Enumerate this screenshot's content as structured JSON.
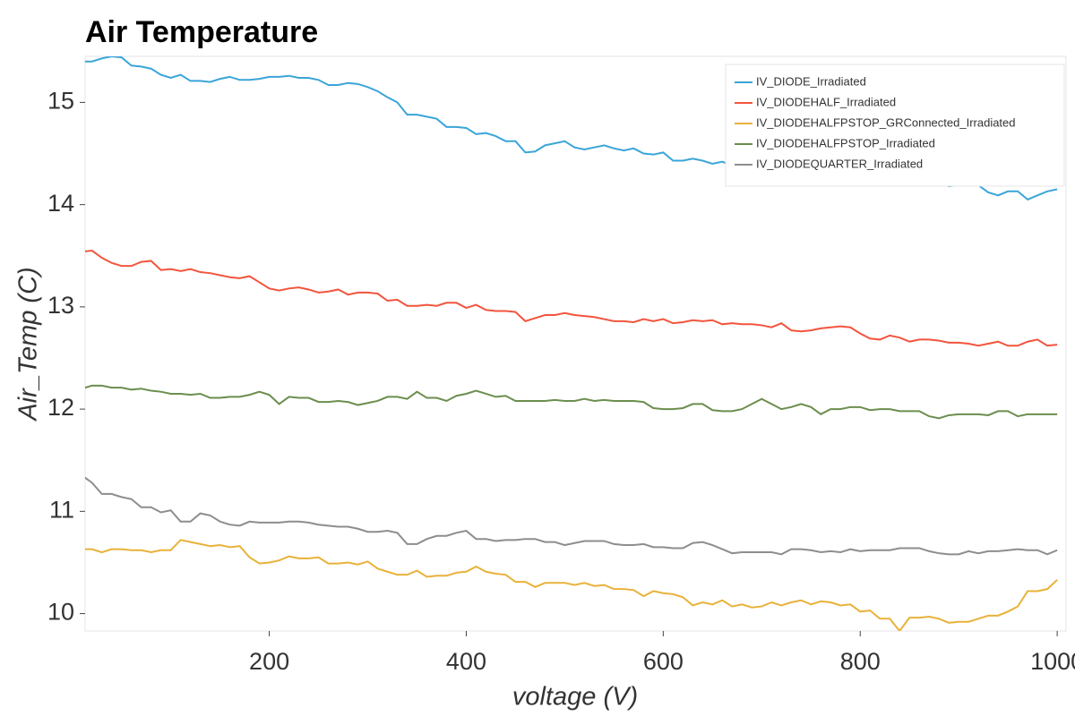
{
  "chart_data": {
    "type": "line",
    "title": "Air Temperature",
    "x_label": "voltage (V)",
    "y_label": "Air_Temp (C)",
    "x": [
      10,
      20,
      30,
      40,
      50,
      60,
      70,
      80,
      90,
      100,
      110,
      120,
      130,
      140,
      150,
      160,
      170,
      180,
      190,
      200,
      210,
      220,
      230,
      240,
      250,
      260,
      270,
      280,
      290,
      300,
      310,
      320,
      330,
      340,
      350,
      360,
      370,
      380,
      390,
      400,
      410,
      420,
      430,
      440,
      450,
      460,
      470,
      480,
      490,
      500,
      510,
      520,
      530,
      540,
      550,
      560,
      570,
      580,
      590,
      600,
      610,
      620,
      630,
      640,
      650,
      660,
      670,
      680,
      690,
      700,
      710,
      720,
      730,
      740,
      750,
      760,
      770,
      780,
      790,
      800,
      810,
      820,
      830,
      840,
      850,
      860,
      870,
      880,
      890,
      900,
      910,
      920,
      930,
      940,
      950,
      960,
      970,
      980,
      990,
      1000
    ],
    "series": [
      {
        "name": "IV_DIODE_Irradiated",
        "color": "#3aa5d9",
        "values": [
          15.4,
          15.4,
          15.43,
          15.45,
          15.44,
          15.36,
          15.35,
          15.33,
          15.27,
          15.24,
          15.27,
          15.21,
          15.21,
          15.2,
          15.23,
          15.25,
          15.22,
          15.22,
          15.23,
          15.25,
          15.25,
          15.26,
          15.24,
          15.24,
          15.22,
          15.17,
          15.17,
          15.19,
          15.18,
          15.15,
          15.11,
          15.05,
          15.0,
          14.88,
          14.88,
          14.86,
          14.84,
          14.76,
          14.76,
          14.75,
          14.69,
          14.7,
          14.67,
          14.62,
          14.62,
          14.51,
          14.52,
          14.58,
          14.6,
          14.62,
          14.56,
          14.54,
          14.56,
          14.58,
          14.55,
          14.53,
          14.55,
          14.5,
          14.49,
          14.51,
          14.43,
          14.43,
          14.45,
          14.43,
          14.4,
          14.42,
          14.38,
          14.37,
          14.36,
          14.35,
          14.34,
          14.33,
          14.33,
          14.32,
          14.31,
          14.3,
          14.3,
          14.29,
          14.28,
          14.28,
          14.27,
          14.27,
          14.26,
          14.26,
          14.25,
          14.25,
          14.25,
          14.22,
          14.18,
          14.19,
          14.19,
          14.19,
          14.12,
          14.09,
          14.13,
          14.13,
          14.05,
          14.09,
          14.13,
          14.15
        ]
      },
      {
        "name": "IV_DIODEHALF_Irradiated",
        "color": "#f2553d",
        "values": [
          13.54,
          13.55,
          13.48,
          13.43,
          13.4,
          13.4,
          13.44,
          13.45,
          13.36,
          13.37,
          13.35,
          13.37,
          13.34,
          13.33,
          13.31,
          13.29,
          13.28,
          13.3,
          13.24,
          13.18,
          13.16,
          13.18,
          13.19,
          13.17,
          13.14,
          13.15,
          13.17,
          13.12,
          13.14,
          13.14,
          13.13,
          13.06,
          13.07,
          13.01,
          13.01,
          13.02,
          13.01,
          13.04,
          13.04,
          12.99,
          13.02,
          12.97,
          12.96,
          12.96,
          12.95,
          12.86,
          12.89,
          12.92,
          12.92,
          12.94,
          12.92,
          12.91,
          12.9,
          12.88,
          12.86,
          12.86,
          12.85,
          12.88,
          12.86,
          12.88,
          12.84,
          12.85,
          12.87,
          12.86,
          12.87,
          12.83,
          12.84,
          12.83,
          12.83,
          12.82,
          12.8,
          12.84,
          12.77,
          12.76,
          12.77,
          12.79,
          12.8,
          12.81,
          12.8,
          12.74,
          12.69,
          12.68,
          12.72,
          12.7,
          12.66,
          12.68,
          12.68,
          12.67,
          12.65,
          12.65,
          12.64,
          12.62,
          12.64,
          12.66,
          12.62,
          12.62,
          12.66,
          12.68,
          12.62,
          12.63
        ]
      },
      {
        "name": "IV_DIODEHALFPSTOP_GRConnected_Irradiated",
        "color": "#e8b23a",
        "values": [
          10.63,
          10.63,
          10.6,
          10.63,
          10.63,
          10.62,
          10.62,
          10.6,
          10.62,
          10.62,
          10.72,
          10.7,
          10.68,
          10.66,
          10.67,
          10.65,
          10.66,
          10.55,
          10.49,
          10.5,
          10.52,
          10.56,
          10.54,
          10.54,
          10.55,
          10.49,
          10.49,
          10.5,
          10.48,
          10.51,
          10.44,
          10.41,
          10.38,
          10.38,
          10.42,
          10.36,
          10.37,
          10.37,
          10.4,
          10.41,
          10.46,
          10.41,
          10.39,
          10.38,
          10.31,
          10.31,
          10.26,
          10.3,
          10.3,
          10.3,
          10.28,
          10.3,
          10.27,
          10.28,
          10.24,
          10.24,
          10.23,
          10.17,
          10.22,
          10.2,
          10.19,
          10.16,
          10.08,
          10.11,
          10.09,
          10.13,
          10.07,
          10.09,
          10.06,
          10.07,
          10.11,
          10.08,
          10.11,
          10.13,
          10.09,
          10.12,
          10.11,
          10.08,
          10.09,
          10.02,
          10.03,
          9.95,
          9.95,
          9.83,
          9.96,
          9.96,
          9.97,
          9.95,
          9.91,
          9.92,
          9.92,
          9.95,
          9.98,
          9.98,
          10.02,
          10.07,
          10.22,
          10.22,
          10.24,
          10.33
        ]
      },
      {
        "name": "IV_DIODEHALFPSTOP_Irradiated",
        "color": "#6b8e4e",
        "values": [
          12.2,
          12.23,
          12.23,
          12.21,
          12.21,
          12.19,
          12.2,
          12.18,
          12.17,
          12.15,
          12.15,
          12.14,
          12.15,
          12.11,
          12.11,
          12.12,
          12.12,
          12.14,
          12.17,
          12.14,
          12.05,
          12.12,
          12.11,
          12.11,
          12.07,
          12.07,
          12.08,
          12.07,
          12.04,
          12.06,
          12.08,
          12.12,
          12.12,
          12.1,
          12.17,
          12.11,
          12.11,
          12.08,
          12.13,
          12.15,
          12.18,
          12.15,
          12.12,
          12.13,
          12.08,
          12.08,
          12.08,
          12.08,
          12.09,
          12.08,
          12.08,
          12.1,
          12.08,
          12.09,
          12.08,
          12.08,
          12.08,
          12.07,
          12.01,
          12.0,
          12.0,
          12.01,
          12.05,
          12.05,
          11.99,
          11.98,
          11.98,
          12.0,
          12.05,
          12.1,
          12.05,
          12.0,
          12.02,
          12.05,
          12.02,
          11.95,
          12.0,
          12.0,
          12.02,
          12.02,
          11.99,
          12.0,
          12.0,
          11.98,
          11.98,
          11.98,
          11.93,
          11.91,
          11.94,
          11.95,
          11.95,
          11.95,
          11.94,
          11.98,
          11.98,
          11.93,
          11.95,
          11.95,
          11.95,
          11.95
        ]
      },
      {
        "name": "IV_DIODEQUARTER_Irradiated",
        "color": "#8d8d8d",
        "values": [
          11.35,
          11.28,
          11.17,
          11.17,
          11.14,
          11.12,
          11.04,
          11.04,
          10.99,
          11.01,
          10.9,
          10.9,
          10.98,
          10.96,
          10.9,
          10.87,
          10.86,
          10.9,
          10.89,
          10.89,
          10.89,
          10.9,
          10.9,
          10.89,
          10.87,
          10.86,
          10.85,
          10.85,
          10.83,
          10.8,
          10.8,
          10.81,
          10.79,
          10.68,
          10.68,
          10.73,
          10.76,
          10.76,
          10.79,
          10.81,
          10.73,
          10.73,
          10.71,
          10.72,
          10.72,
          10.73,
          10.73,
          10.7,
          10.7,
          10.67,
          10.69,
          10.71,
          10.71,
          10.71,
          10.68,
          10.67,
          10.67,
          10.68,
          10.65,
          10.65,
          10.64,
          10.64,
          10.69,
          10.7,
          10.67,
          10.63,
          10.59,
          10.6,
          10.6,
          10.6,
          10.6,
          10.58,
          10.63,
          10.63,
          10.62,
          10.6,
          10.61,
          10.6,
          10.63,
          10.61,
          10.62,
          10.62,
          10.62,
          10.64,
          10.64,
          10.64,
          10.61,
          10.59,
          10.58,
          10.58,
          10.61,
          10.59,
          10.61,
          10.61,
          10.62,
          10.63,
          10.62,
          10.62,
          10.58,
          10.62
        ]
      }
    ],
    "xlim": [
      13,
      1009
    ],
    "ylim": [
      9.83,
      15.45
    ],
    "xticks": [
      200,
      400,
      600,
      800,
      1000
    ],
    "yticks": [
      10,
      11,
      12,
      13,
      14,
      15
    ],
    "legend": "upper right"
  }
}
